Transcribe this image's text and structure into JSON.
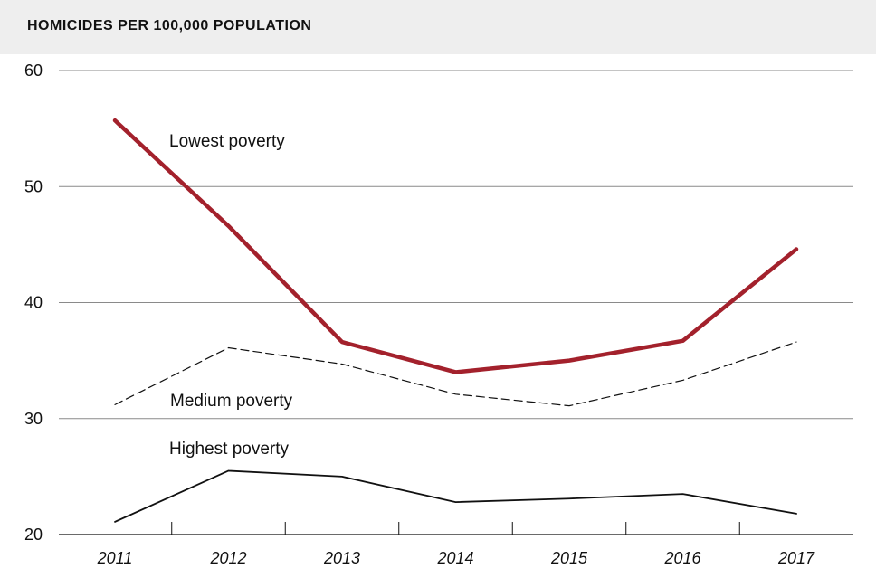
{
  "chart_data": {
    "type": "line",
    "title": "HOMICIDES PER 100,000 POPULATION",
    "x": [
      "2011",
      "2012",
      "2013",
      "2014",
      "2015",
      "2016",
      "2017"
    ],
    "ylim": [
      20,
      60
    ],
    "yticks": [
      20,
      30,
      40,
      50,
      60
    ],
    "grid": true,
    "series": [
      {
        "name": "Lowest poverty",
        "values": [
          55.7,
          46.6,
          36.6,
          34.0,
          35.0,
          36.7,
          44.6
        ],
        "color": "#a3212c",
        "style": "solid-thick"
      },
      {
        "name": "Medium poverty",
        "values": [
          31.2,
          36.1,
          34.7,
          32.1,
          31.1,
          33.3,
          36.6
        ],
        "color": "#111111",
        "style": "dashed"
      },
      {
        "name": "Highest poverty",
        "values": [
          21.1,
          25.5,
          25.0,
          22.8,
          23.1,
          23.5,
          21.8
        ],
        "color": "#111111",
        "style": "solid"
      }
    ]
  }
}
